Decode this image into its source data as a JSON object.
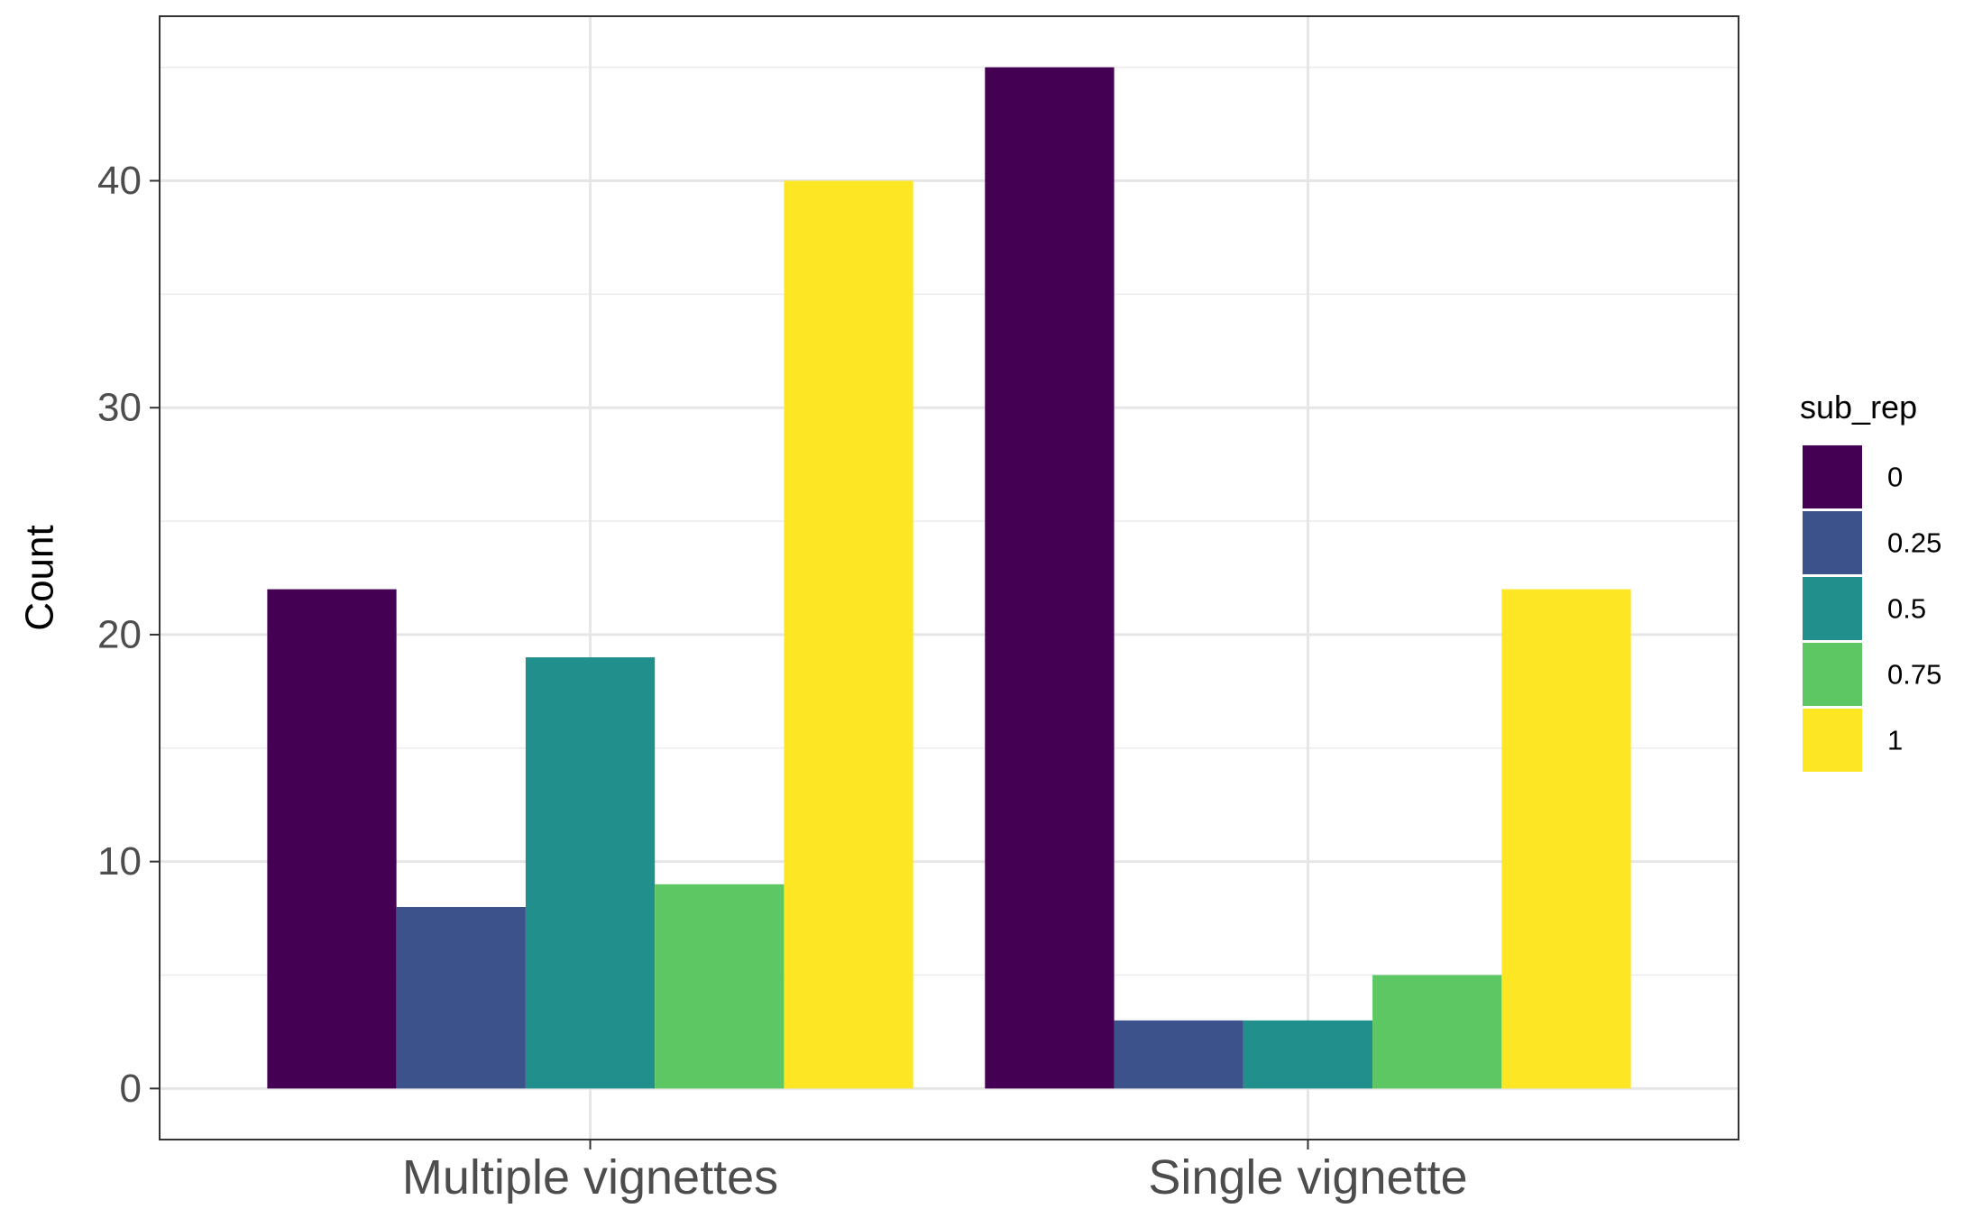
{
  "chart_data": {
    "type": "bar",
    "title": "",
    "xlabel": "",
    "ylabel": "Count",
    "categories": [
      "Multiple vignettes",
      "Single vignette"
    ],
    "ylim": [
      -2.25,
      47.25
    ],
    "yticks": [
      0,
      10,
      20,
      30,
      40
    ],
    "ytick_labels": [
      "0",
      "10",
      "20",
      "30",
      "40"
    ],
    "grid": true,
    "legend": {
      "title": "sub_rep",
      "position": "right"
    },
    "series": [
      {
        "name": "0",
        "color": "#440154",
        "values": [
          22,
          45
        ]
      },
      {
        "name": "0.25",
        "color": "#3B528B",
        "values": [
          8,
          3
        ]
      },
      {
        "name": "0.5",
        "color": "#21908C",
        "values": [
          19,
          3
        ]
      },
      {
        "name": "0.75",
        "color": "#5DC863",
        "values": [
          9,
          5
        ]
      },
      {
        "name": "1",
        "color": "#FDE725",
        "values": [
          40,
          22
        ]
      }
    ]
  }
}
